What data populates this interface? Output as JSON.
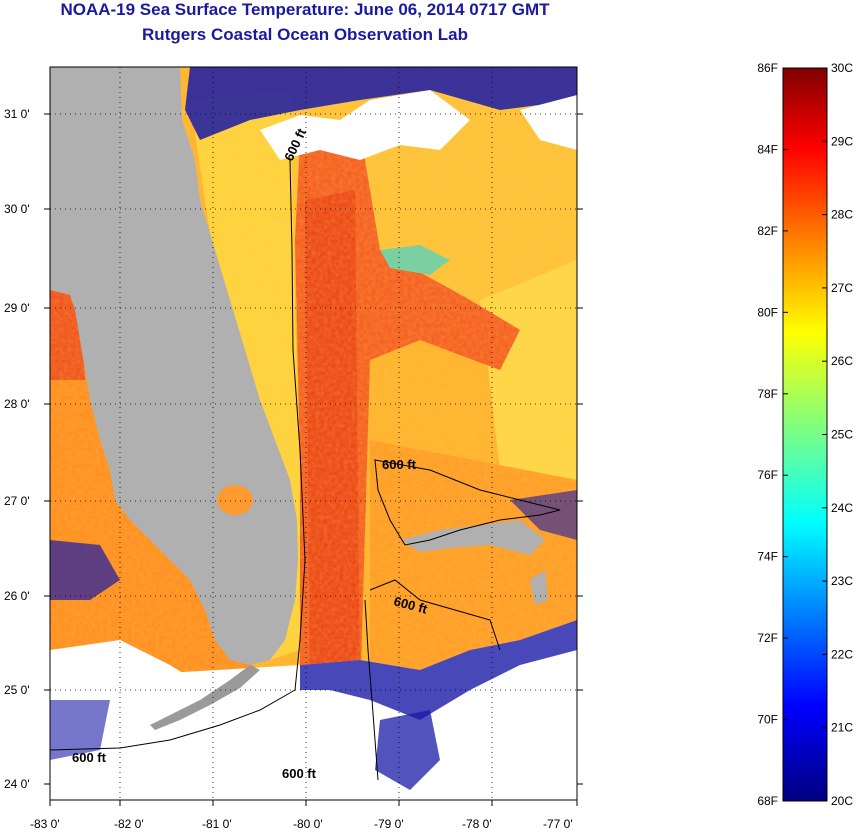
{
  "title": "NOAA-19 Sea Surface Temperature:  June 06, 2014 0717 GMT",
  "subtitle": "Rutgers Coastal Ocean Observation Lab",
  "map": {
    "lon_range": [
      -83,
      -77
    ],
    "lat_range": [
      23.85,
      31.4
    ],
    "lon_ticks": [
      "-83 0'",
      "-82 0'",
      "-81 0'",
      "-80 0'",
      "-79 0'",
      "-78 0'",
      "-77 0'"
    ],
    "lat_ticks": [
      "31 0'",
      "30 0'",
      "29 0'",
      "28 0'",
      "27 0'",
      "26 0'",
      "25 0'",
      "24 0'"
    ],
    "contour_labels": [
      "600 ft",
      "600 ft",
      "600 ft",
      "600 ft",
      "600 ft"
    ],
    "colors": {
      "land": "#b0b0b0",
      "cloud": "#ffffff",
      "warm": "#ff6a1a",
      "hot": "#ee3010",
      "mid": "#ffb020",
      "cool": "#ffd040"
    }
  },
  "colorbar": {
    "fahrenheit": [
      "86F",
      "84F",
      "82F",
      "80F",
      "78F",
      "76F",
      "74F",
      "72F",
      "70F",
      "68F"
    ],
    "celsius": [
      "30C",
      "29C",
      "28C",
      "27C",
      "26C",
      "25C",
      "24C",
      "23C",
      "22C",
      "21C",
      "20C"
    ]
  }
}
